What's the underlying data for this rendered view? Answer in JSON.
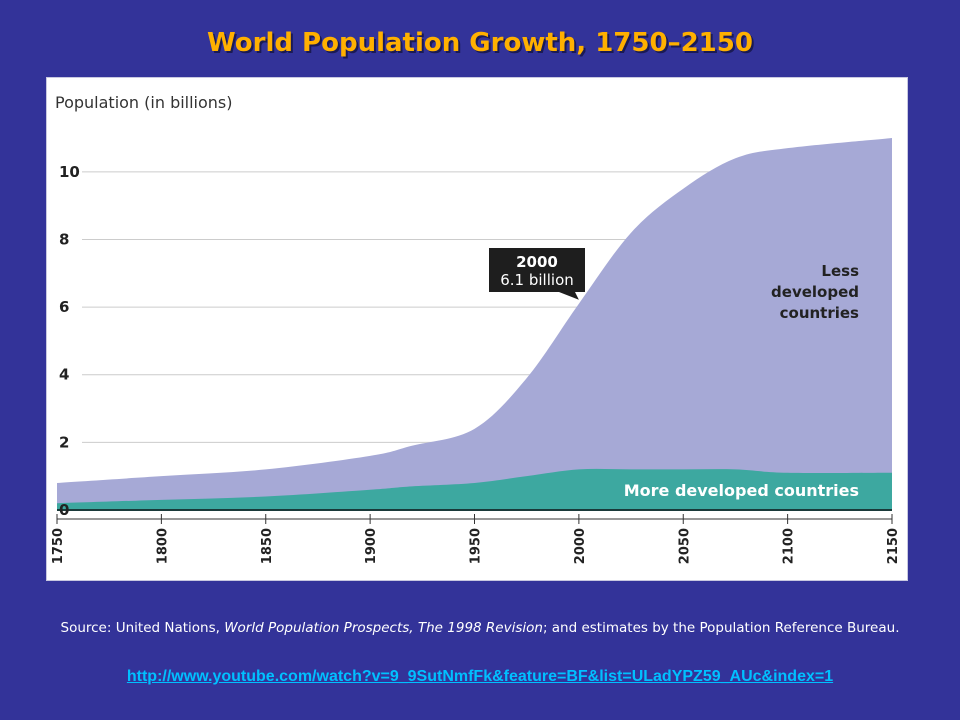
{
  "slide": {
    "title": "World Population Growth, 1750–2150",
    "source_prefix": "Source: United Nations, ",
    "source_title": "World Population Prospects, The 1998 Revision",
    "source_suffix": "; and estimates by the Population Reference Bureau.",
    "link": "http://www.youtube.com/watch?v=9_9SutNmfFk&feature=BF&list=ULadYPZ59_AUc&index=1"
  },
  "colors": {
    "background": "#333399",
    "title": "#ffb000",
    "less_developed": "#a6a9d6",
    "more_developed": "#3da8a0",
    "link": "#00c0ff"
  },
  "chart_data": {
    "type": "area",
    "stacked": true,
    "ylabel": "Population (in billions)",
    "ylim": [
      0,
      11
    ],
    "yticks": [
      0,
      2,
      4,
      6,
      8,
      10
    ],
    "xlim": [
      1750,
      2150
    ],
    "xticks": [
      1750,
      1800,
      1850,
      1900,
      1950,
      2000,
      2050,
      2100,
      2150
    ],
    "grid": true,
    "x": [
      1750,
      1800,
      1850,
      1900,
      1920,
      1950,
      1975,
      2000,
      2025,
      2050,
      2075,
      2100,
      2150
    ],
    "series": [
      {
        "name": "More developed countries",
        "values": [
          0.2,
          0.3,
          0.4,
          0.6,
          0.7,
          0.8,
          1.0,
          1.2,
          1.2,
          1.2,
          1.2,
          1.1,
          1.1
        ]
      },
      {
        "name": "Less developed countries",
        "values": [
          0.6,
          0.7,
          0.8,
          1.0,
          1.2,
          1.6,
          2.9,
          4.9,
          7.0,
          8.3,
          9.2,
          9.6,
          9.9
        ]
      }
    ],
    "annotation": {
      "year": "2000",
      "value": "6.1 billion"
    }
  }
}
